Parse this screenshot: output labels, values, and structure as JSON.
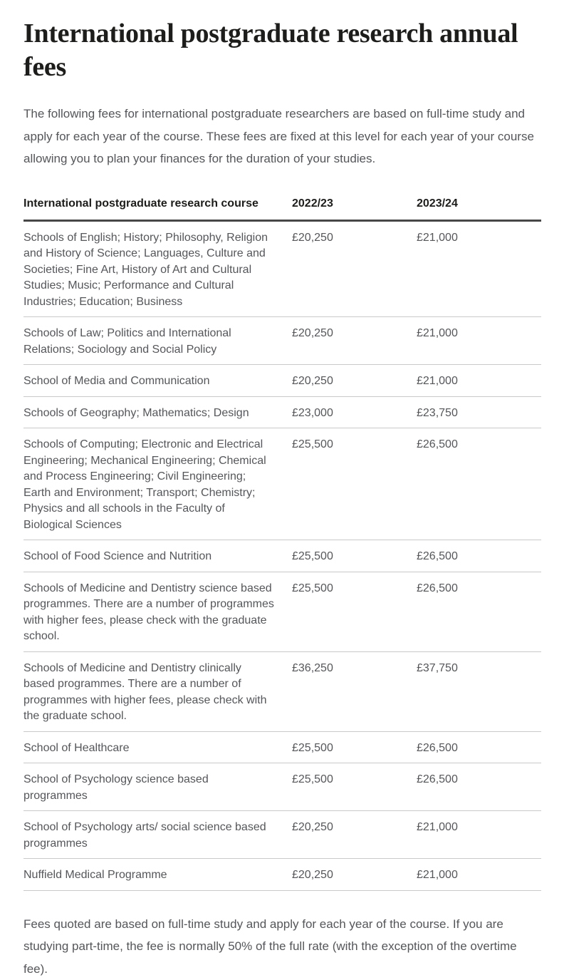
{
  "page": {
    "title": "International postgraduate research annual fees",
    "intro": "The following fees for international postgraduate researchers are based on full-time study and apply for each year of the course. These fees are fixed at this level for each year of your course allowing you to plan your finances for the duration of your studies.",
    "footnote": "Fees quoted are based on full-time study and apply for each year of the course. If you are studying part-time, the fee is normally 50% of the full rate (with the exception of the overtime fee)."
  },
  "table": {
    "columns": [
      "International postgraduate research course",
      "2022/23",
      "2023/24"
    ],
    "rows": [
      {
        "course": "Schools of English; History; Philosophy, Religion and History of Science; Languages, Culture and Societies; Fine Art, History of Art and Cultural Studies; Music; Performance and Cultural Industries; Education; Business",
        "fee_2022_23": "£20,250",
        "fee_2023_24": "£21,000"
      },
      {
        "course": "Schools of Law; Politics and International Relations; Sociology and Social Policy",
        "fee_2022_23": "£20,250",
        "fee_2023_24": "£21,000"
      },
      {
        "course": "School of Media and Communication",
        "fee_2022_23": "£20,250",
        "fee_2023_24": "£21,000"
      },
      {
        "course": "Schools of Geography; Mathematics; Design",
        "fee_2022_23": "£23,000",
        "fee_2023_24": "£23,750"
      },
      {
        "course": "Schools of Computing; Electronic and Electrical Engineering; Mechanical Engineering; Chemical and Process Engineering; Civil Engineering; Earth and Environment; Transport; Chemistry; Physics and all schools in the Faculty of Biological Sciences",
        "fee_2022_23": "£25,500",
        "fee_2023_24": "£26,500"
      },
      {
        "course": "School of Food Science and Nutrition",
        "fee_2022_23": "£25,500",
        "fee_2023_24": "£26,500"
      },
      {
        "course": "Schools of Medicine and Dentistry science based programmes. There are a number of programmes with higher fees, please check with the graduate school.",
        "fee_2022_23": "£25,500",
        "fee_2023_24": "£26,500"
      },
      {
        "course": "Schools of Medicine and Dentistry clinically based programmes. There are a number of programmes with higher fees, please check with the graduate school.",
        "fee_2022_23": "£36,250",
        "fee_2023_24": "£37,750"
      },
      {
        "course": "School of Healthcare",
        "fee_2022_23": "£25,500",
        "fee_2023_24": "£26,500"
      },
      {
        "course": "School of Psychology science based programmes",
        "fee_2022_23": "£25,500",
        "fee_2023_24": "£26,500"
      },
      {
        "course": "School of Psychology arts/ social science based programmes",
        "fee_2022_23": "£20,250",
        "fee_2023_24": "£21,000"
      },
      {
        "course": "Nuffield Medical Programme",
        "fee_2022_23": "£20,250",
        "fee_2023_24": "£21,000"
      }
    ]
  },
  "colors": {
    "heading_text": "#1d1d1b",
    "body_text": "#54565a",
    "table_header_text": "#1d1d1b",
    "header_rule": "#474747",
    "row_divider": "#c9c9c9",
    "background": "#ffffff"
  }
}
